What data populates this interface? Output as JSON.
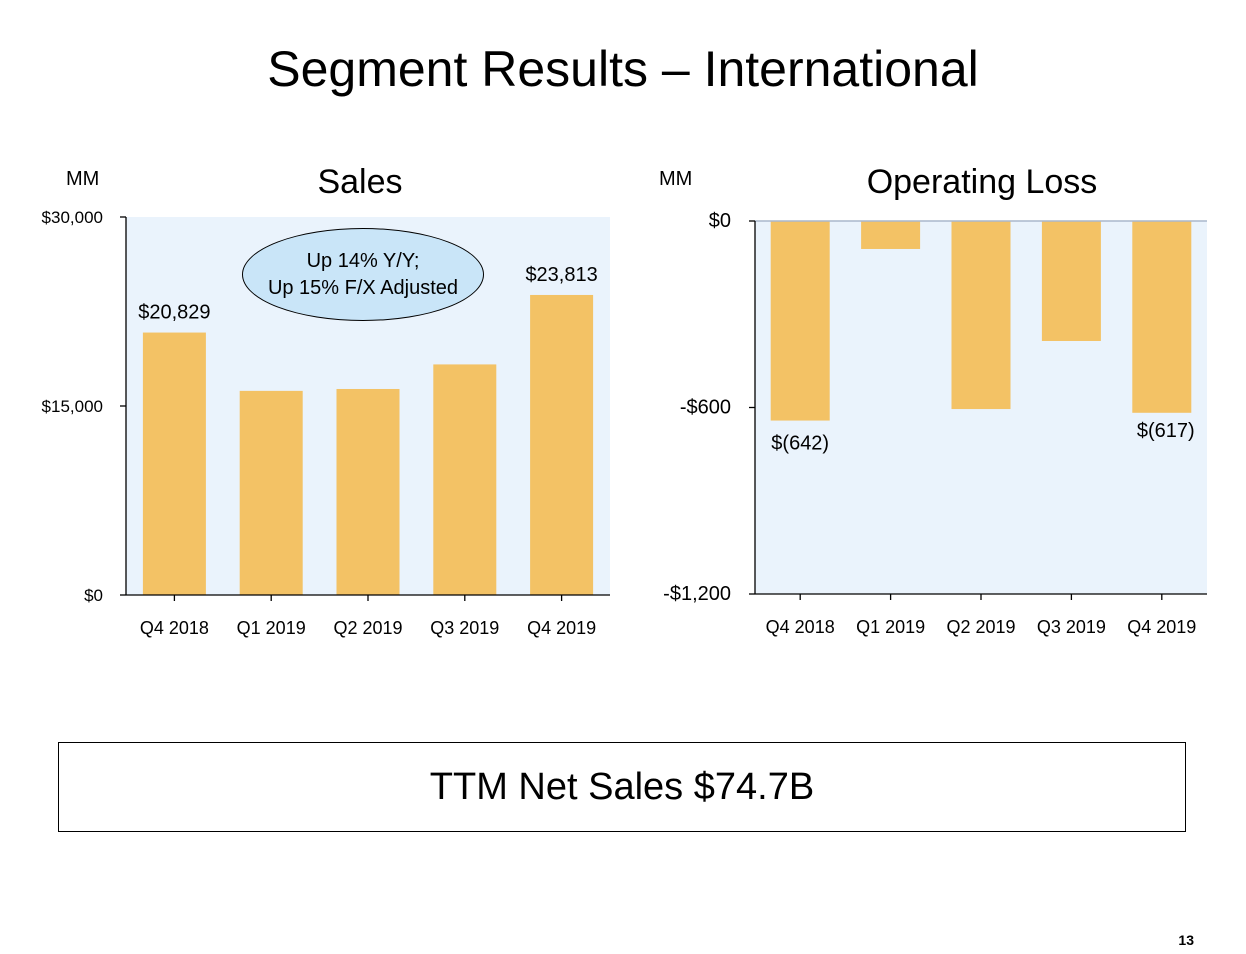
{
  "slide": {
    "title": "Segment Results – International",
    "page_number": "13"
  },
  "ttm": {
    "text": "TTM Net Sales $74.7B"
  },
  "colors": {
    "bar": "#f3c265",
    "plot_bg": "#eaf3fc",
    "callout_bg": "#c9e5f8",
    "zero_line": "#a9b7cc"
  },
  "chart_data": [
    {
      "type": "bar",
      "title": "Sales",
      "unit_label": "MM",
      "categories": [
        "Q4 2018",
        "Q1 2019",
        "Q2 2019",
        "Q3 2019",
        "Q4 2019"
      ],
      "values": [
        20829,
        16200,
        16350,
        18300,
        23813
      ],
      "ylim": [
        0,
        30000
      ],
      "yticks": [
        0,
        15000,
        30000
      ],
      "ytick_labels": [
        "$0",
        "$15,000",
        "$30,000"
      ],
      "data_labels": [
        {
          "index": 0,
          "text": "$20,829"
        },
        {
          "index": 4,
          "text": "$23,813"
        }
      ],
      "annotation": [
        "Up 14% Y/Y;",
        "Up 15% F/X Adjusted"
      ]
    },
    {
      "type": "bar",
      "title": "Operating Loss",
      "unit_label": "MM",
      "categories": [
        "Q4 2018",
        "Q1 2019",
        "Q2 2019",
        "Q3 2019",
        "Q4 2019"
      ],
      "values": [
        -642,
        -90,
        -605,
        -386,
        -617
      ],
      "ylim": [
        -1200,
        0
      ],
      "yticks": [
        0,
        -600,
        -1200
      ],
      "ytick_labels": [
        "$0",
        "-$600",
        "-$1,200"
      ],
      "data_labels": [
        {
          "index": 0,
          "text": "$(642)"
        },
        {
          "index": 4,
          "text": "$(617)"
        }
      ]
    }
  ]
}
